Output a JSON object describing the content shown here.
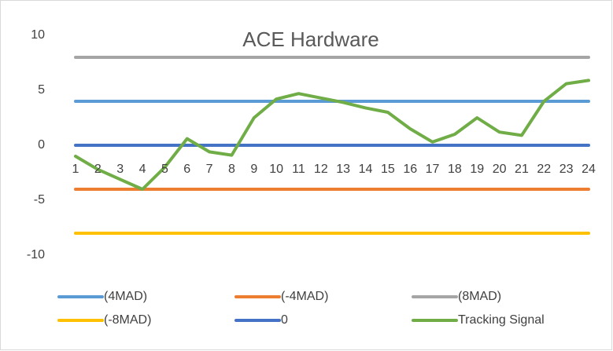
{
  "chart_data": {
    "type": "line",
    "title": "ACE Hardware",
    "categories": [
      1,
      2,
      3,
      4,
      5,
      6,
      7,
      8,
      9,
      10,
      11,
      12,
      13,
      14,
      15,
      16,
      17,
      18,
      19,
      20,
      21,
      22,
      23,
      24
    ],
    "ylim": [
      -10,
      10
    ],
    "yticks": [
      -10,
      -5,
      0,
      5,
      10
    ],
    "grid": false,
    "series": [
      {
        "name": "(4MAD)",
        "color": "#5b9bd5",
        "values": [
          4,
          4,
          4,
          4,
          4,
          4,
          4,
          4,
          4,
          4,
          4,
          4,
          4,
          4,
          4,
          4,
          4,
          4,
          4,
          4,
          4,
          4,
          4,
          4
        ]
      },
      {
        "name": "(-4MAD)",
        "color": "#ed7d31",
        "values": [
          -4,
          -4,
          -4,
          -4,
          -4,
          -4,
          -4,
          -4,
          -4,
          -4,
          -4,
          -4,
          -4,
          -4,
          -4,
          -4,
          -4,
          -4,
          -4,
          -4,
          -4,
          -4,
          -4,
          -4
        ]
      },
      {
        "name": "(8MAD)",
        "color": "#a5a5a5",
        "values": [
          8,
          8,
          8,
          8,
          8,
          8,
          8,
          8,
          8,
          8,
          8,
          8,
          8,
          8,
          8,
          8,
          8,
          8,
          8,
          8,
          8,
          8,
          8,
          8
        ]
      },
      {
        "name": "(-8MAD)",
        "color": "#ffc000",
        "values": [
          -8,
          -8,
          -8,
          -8,
          -8,
          -8,
          -8,
          -8,
          -8,
          -8,
          -8,
          -8,
          -8,
          -8,
          -8,
          -8,
          -8,
          -8,
          -8,
          -8,
          -8,
          -8,
          -8,
          -8
        ]
      },
      {
        "name": "0",
        "color": "#4472c4",
        "values": [
          0,
          0,
          0,
          0,
          0,
          0,
          0,
          0,
          0,
          0,
          0,
          0,
          0,
          0,
          0,
          0,
          0,
          0,
          0,
          0,
          0,
          0,
          0,
          0
        ]
      },
      {
        "name": "Tracking Signal",
        "color": "#70ad47",
        "values": [
          -1.0,
          -2.2,
          -3.1,
          -4.0,
          -2.0,
          0.6,
          -0.6,
          -0.9,
          2.5,
          4.2,
          4.7,
          4.3,
          3.9,
          3.4,
          3.0,
          1.5,
          0.3,
          1.0,
          2.5,
          1.2,
          0.9,
          4.0,
          5.6,
          5.9
        ]
      }
    ]
  }
}
